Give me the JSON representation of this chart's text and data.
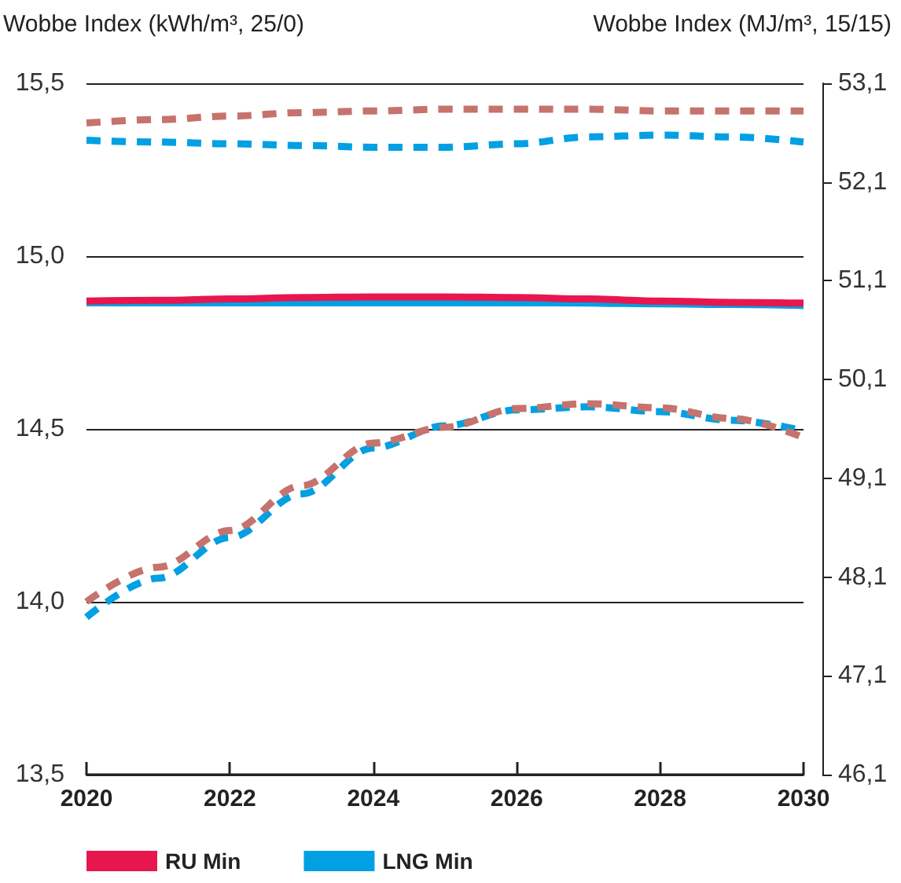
{
  "chart_data": {
    "type": "line",
    "ylabel": "Wobbe Index (kWh/m³, 25/0)",
    "y2label": "Wobbe Index (MJ/m³, 15/15)",
    "x": [
      2020,
      2021,
      2022,
      2023,
      2024,
      2025,
      2026,
      2027,
      2028,
      2029,
      2030
    ],
    "xlim": [
      2020,
      2030
    ],
    "xticks": [
      2020,
      2022,
      2024,
      2026,
      2028,
      2030
    ],
    "ylim": [
      13.5,
      15.5
    ],
    "yticks": [
      {
        "value": 13.5,
        "label": "13,5"
      },
      {
        "value": 14.0,
        "label": "14,0"
      },
      {
        "value": 14.5,
        "label": "14,5"
      },
      {
        "value": 15.0,
        "label": "15,0"
      },
      {
        "value": 15.5,
        "label": "15,5"
      }
    ],
    "y2lim": [
      46.1,
      53.1
    ],
    "y2ticks": [
      {
        "value": 46.1,
        "label": "46,1"
      },
      {
        "value": 47.1,
        "label": "47,1"
      },
      {
        "value": 48.1,
        "label": "48,1"
      },
      {
        "value": 49.1,
        "label": "49,1"
      },
      {
        "value": 50.1,
        "label": "50,1"
      },
      {
        "value": 51.1,
        "label": "51,1"
      },
      {
        "value": 52.1,
        "label": "52,1"
      },
      {
        "value": 53.1,
        "label": "53,1"
      }
    ],
    "grid": "y",
    "legend": "bottom left",
    "marker": "none",
    "series": [
      {
        "color": "#c5736c",
        "line_style": "dashed",
        "values": [
          15.385,
          15.395,
          15.405,
          15.415,
          15.42,
          15.425,
          15.425,
          15.425,
          15.42,
          15.42,
          15.42
        ]
      },
      {
        "color": "#00a0e3",
        "line_style": "dashed",
        "values": [
          15.335,
          15.33,
          15.325,
          15.32,
          15.315,
          15.315,
          15.325,
          15.345,
          15.35,
          15.345,
          15.33
        ]
      },
      {
        "name": "RU Min",
        "color": "#e8164f",
        "line_style": "solid",
        "values": [
          14.87,
          14.872,
          14.876,
          14.88,
          14.882,
          14.882,
          14.88,
          14.876,
          14.87,
          14.866,
          14.864
        ]
      },
      {
        "name": "LNG Min",
        "color": "#00a0e3",
        "line_style": "solid",
        "values": [
          14.865,
          14.865,
          14.865,
          14.865,
          14.865,
          14.865,
          14.865,
          14.864,
          14.862,
          14.86,
          14.857
        ]
      },
      {
        "color": "#c5736c",
        "line_style": "dashed",
        "values": [
          14.0,
          14.1,
          14.206,
          14.336,
          14.459,
          14.505,
          14.559,
          14.573,
          14.561,
          14.53,
          14.475
        ]
      },
      {
        "color": "#00a0e3",
        "line_style": "dashed",
        "values": [
          13.955,
          14.068,
          14.186,
          14.312,
          14.445,
          14.509,
          14.555,
          14.564,
          14.55,
          14.525,
          14.495
        ]
      }
    ]
  }
}
